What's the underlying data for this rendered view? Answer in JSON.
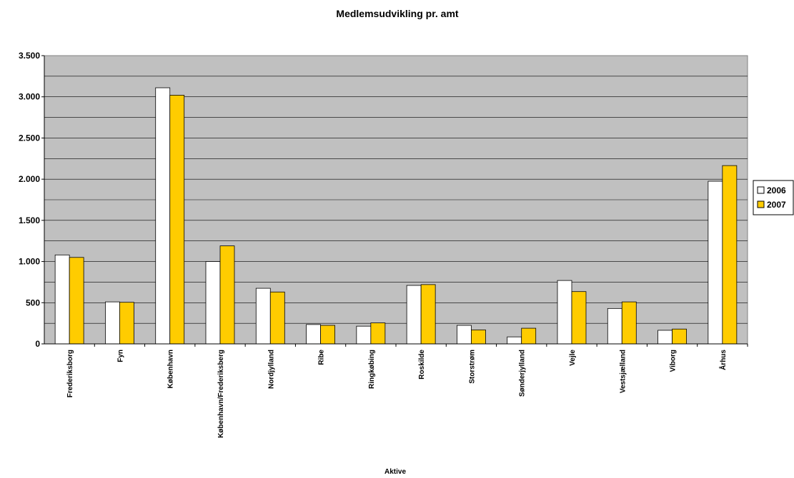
{
  "chart_data": {
    "type": "bar",
    "title": "Medlemsudvikling pr. amt",
    "xlabel": "Aktive",
    "ylabel": "",
    "ylim": [
      0,
      3500
    ],
    "yticks": [
      0,
      500,
      1000,
      1500,
      2000,
      2500,
      3000,
      3500
    ],
    "ytick_labels": [
      "0",
      "500",
      "1.000",
      "1.500",
      "2.000",
      "2.500",
      "3.000",
      "3.500"
    ],
    "grid": true,
    "legend_position": "right",
    "plot_background": "#c0c0c0",
    "categories": [
      "Frederiksborg",
      "Fyn",
      "København",
      "København/Frederiksberg",
      "Nordjylland",
      "Ribe",
      "Ringkøbing",
      "Roskilde",
      "Storstrøm",
      "Sønderjylland",
      "Vejle",
      "Vestsjælland",
      "Viborg",
      "Århus"
    ],
    "series": [
      {
        "name": "2006",
        "color": "#ffffff",
        "values": [
          1080,
          510,
          3110,
          1000,
          675,
          235,
          215,
          710,
          225,
          85,
          770,
          430,
          165,
          1975
        ]
      },
      {
        "name": "2007",
        "color": "#ffcc00",
        "values": [
          1050,
          505,
          3020,
          1190,
          630,
          225,
          255,
          720,
          170,
          190,
          635,
          510,
          180,
          2165
        ]
      }
    ]
  }
}
